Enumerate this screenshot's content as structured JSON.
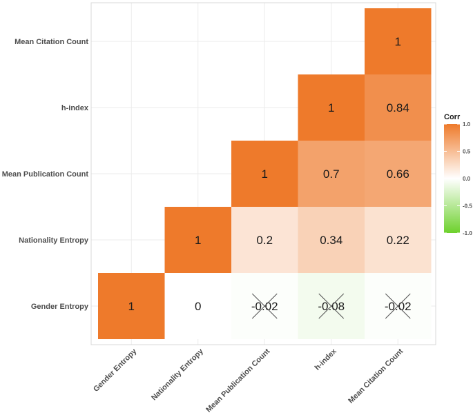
{
  "chart_data": {
    "type": "heatmap",
    "title": "",
    "xlabel": "",
    "ylabel": "",
    "variables": [
      "Gender Entropy",
      "Nationality Entropy",
      "Mean Publication Count",
      "h-index",
      "Mean Citation Count"
    ],
    "cells": [
      {
        "row": "Gender Entropy",
        "col": "Gender Entropy",
        "value": 1,
        "label": "1",
        "significant": true
      },
      {
        "row": "Gender Entropy",
        "col": "Nationality Entropy",
        "value": 0,
        "label": "0",
        "significant": true
      },
      {
        "row": "Gender Entropy",
        "col": "Mean Publication Count",
        "value": -0.02,
        "label": "-0.02",
        "significant": false
      },
      {
        "row": "Gender Entropy",
        "col": "h-index",
        "value": -0.08,
        "label": "-0.08",
        "significant": false
      },
      {
        "row": "Gender Entropy",
        "col": "Mean Citation Count",
        "value": -0.02,
        "label": "-0.02",
        "significant": false
      },
      {
        "row": "Nationality Entropy",
        "col": "Nationality Entropy",
        "value": 1,
        "label": "1",
        "significant": true
      },
      {
        "row": "Nationality Entropy",
        "col": "Mean Publication Count",
        "value": 0.2,
        "label": "0.2",
        "significant": true
      },
      {
        "row": "Nationality Entropy",
        "col": "h-index",
        "value": 0.34,
        "label": "0.34",
        "significant": true
      },
      {
        "row": "Nationality Entropy",
        "col": "Mean Citation Count",
        "value": 0.22,
        "label": "0.22",
        "significant": true
      },
      {
        "row": "Mean Publication Count",
        "col": "Mean Publication Count",
        "value": 1,
        "label": "1",
        "significant": true
      },
      {
        "row": "Mean Publication Count",
        "col": "h-index",
        "value": 0.7,
        "label": "0.7",
        "significant": true
      },
      {
        "row": "Mean Publication Count",
        "col": "Mean Citation Count",
        "value": 0.66,
        "label": "0.66",
        "significant": true
      },
      {
        "row": "h-index",
        "col": "h-index",
        "value": 1,
        "label": "1",
        "significant": true
      },
      {
        "row": "h-index",
        "col": "Mean Citation Count",
        "value": 0.84,
        "label": "0.84",
        "significant": true
      },
      {
        "row": "Mean Citation Count",
        "col": "Mean Citation Count",
        "value": 1,
        "label": "1",
        "significant": true
      }
    ],
    "legend": {
      "title": "Corr",
      "ticks": [
        "1.0",
        "0.5",
        "0.0",
        "-0.5",
        "-1.0"
      ],
      "tick_values": [
        1.0,
        0.5,
        0.0,
        -0.5,
        -1.0
      ],
      "range": [
        -1,
        1
      ],
      "placement": "right"
    },
    "colors": {
      "high": "#ee7a2b",
      "mid": "#ffffff",
      "low": "#6dd12c",
      "grid": "#ebebeb",
      "panel_border": "#d9d9d9",
      "insignificant_mark": "#555555"
    }
  }
}
